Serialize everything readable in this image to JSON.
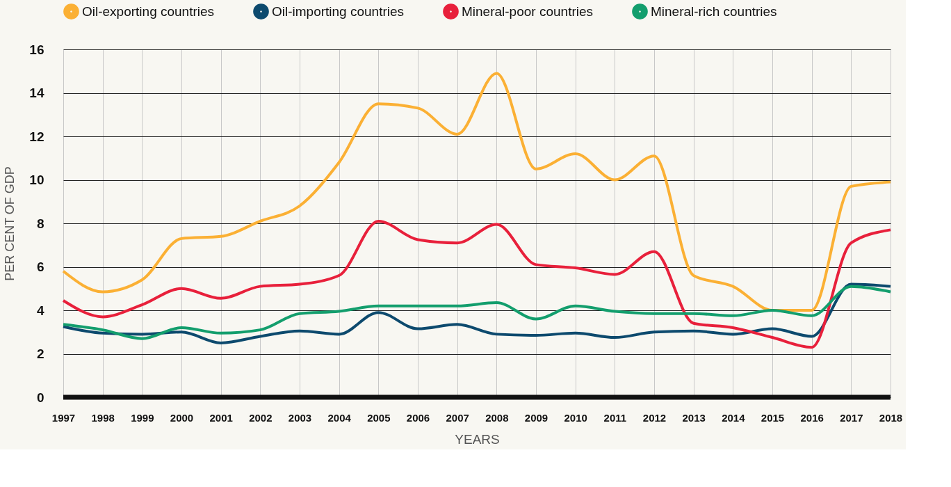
{
  "chart_data": {
    "type": "line",
    "xlabel": "YEARS",
    "ylabel": "PER CENT OF GDP",
    "x": [
      1997,
      1998,
      1999,
      2000,
      2001,
      2002,
      2003,
      2004,
      2005,
      2006,
      2007,
      2008,
      2009,
      2010,
      2011,
      2012,
      2013,
      2014,
      2015,
      2016,
      2017,
      2018
    ],
    "xlim": [
      1997,
      2018
    ],
    "xticks": [
      1997,
      1998,
      1999,
      2000,
      2001,
      2002,
      2003,
      2004,
      2005,
      2006,
      2007,
      2008,
      2009,
      2010,
      2011,
      2012,
      2013,
      2014,
      2015,
      2016,
      2017,
      2018
    ],
    "ylim": [
      0,
      16
    ],
    "yticks": [
      0,
      2,
      4,
      6,
      8,
      10,
      12,
      14,
      16
    ],
    "grid": true,
    "legend": "top",
    "marker": "none",
    "line_style": "solid",
    "series": [
      {
        "name": "Oil-exporting countries",
        "color": "#fbb034",
        "values": [
          5.8,
          4.85,
          5.4,
          7.3,
          7.4,
          8.1,
          8.8,
          10.8,
          13.5,
          13.3,
          12.1,
          14.9,
          10.5,
          11.2,
          10.0,
          11.1,
          5.6,
          5.1,
          4.0,
          4.0,
          9.7,
          9.9
        ]
      },
      {
        "name": "Oil-importing countries",
        "color": "#0d4a6e",
        "values": [
          3.25,
          2.95,
          2.9,
          3.0,
          2.5,
          2.8,
          3.05,
          2.9,
          3.9,
          3.15,
          3.35,
          2.9,
          2.85,
          2.95,
          2.75,
          3.0,
          3.05,
          2.9,
          3.15,
          2.8,
          5.2,
          5.1
        ]
      },
      {
        "name": "Mineral-poor countries",
        "color": "#e8203b",
        "values": [
          4.45,
          3.7,
          4.25,
          5.0,
          4.55,
          5.1,
          5.2,
          5.6,
          8.1,
          7.25,
          7.1,
          7.95,
          6.1,
          5.95,
          5.65,
          6.7,
          3.4,
          3.2,
          2.75,
          2.3,
          7.1,
          7.7
        ]
      },
      {
        "name": "Mineral-rich countries",
        "color": "#139e6d",
        "values": [
          3.35,
          3.1,
          2.7,
          3.2,
          2.95,
          3.1,
          3.85,
          3.95,
          4.2,
          4.2,
          4.2,
          4.35,
          3.6,
          4.2,
          3.95,
          3.85,
          3.85,
          3.75,
          4.0,
          3.75,
          5.1,
          4.85
        ]
      }
    ]
  }
}
